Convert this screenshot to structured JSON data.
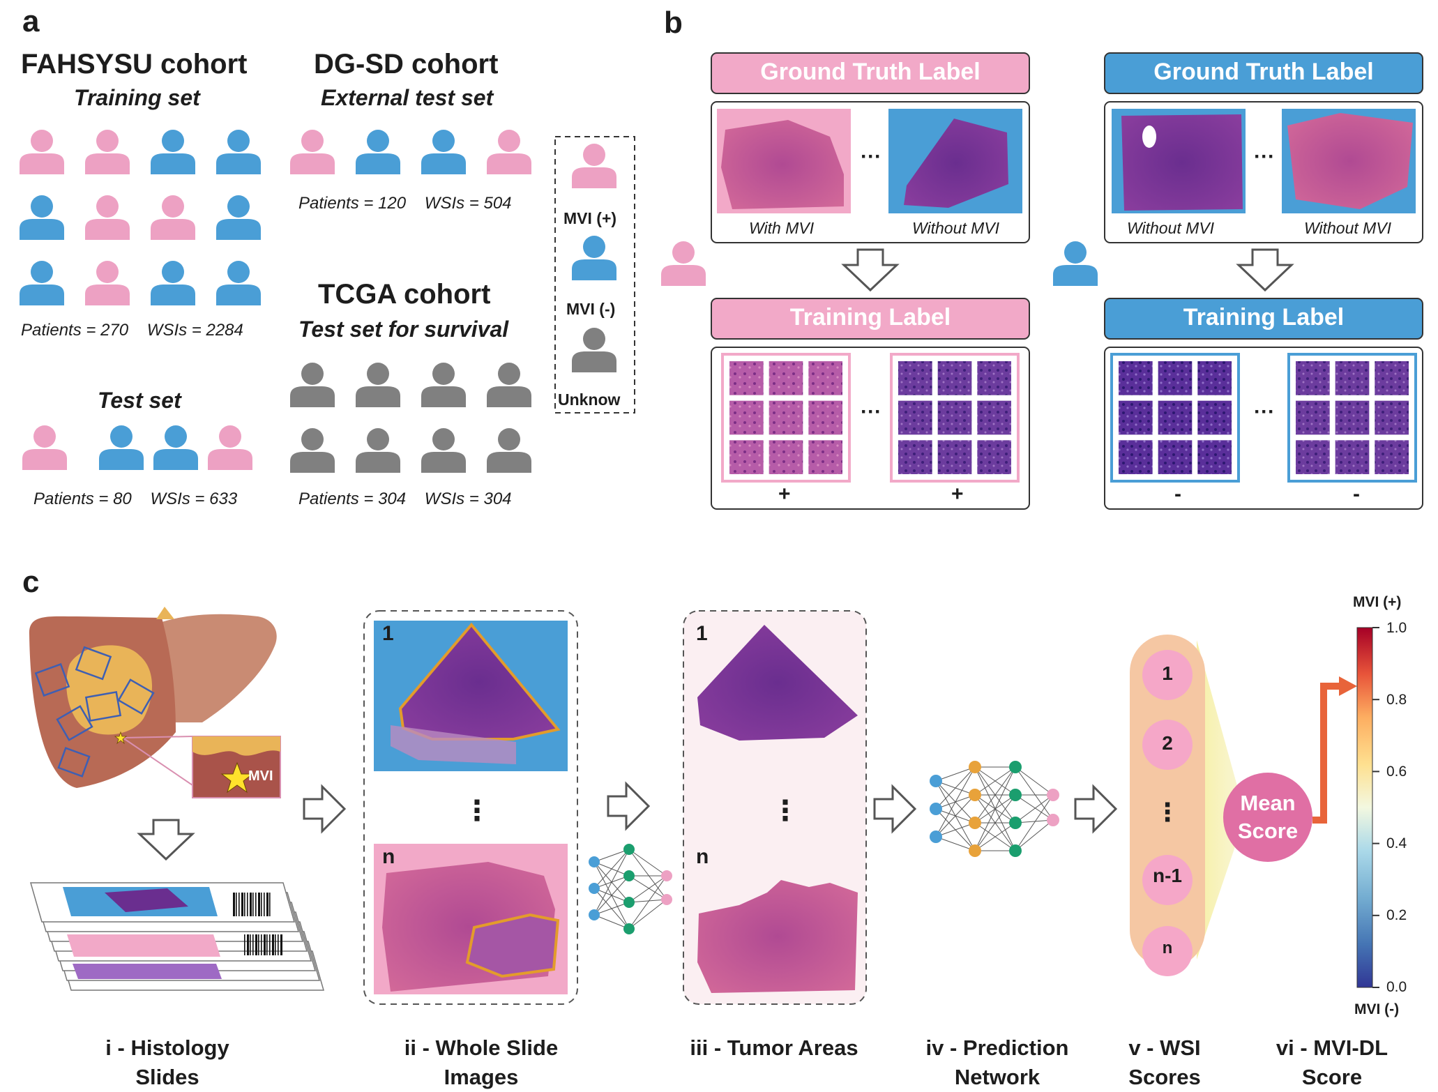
{
  "colors": {
    "mvi_positive": "#EDA1C3",
    "mvi_negative": "#4A9ED6",
    "unknown": "#808080",
    "truth_pink": "#F2A9C8",
    "truth_blue": "#4A9ED6",
    "pill": "#F5C7A3",
    "mean_score": "#E06FA4",
    "colormap": [
      "#313695",
      "#4575B4",
      "#74ADD1",
      "#ABD9E9",
      "#E0F3F8",
      "#FEE090",
      "#FDAE61",
      "#F46D43",
      "#D73027",
      "#A50026"
    ]
  },
  "panel_a": {
    "letter": "a",
    "fahsysu": {
      "title": "FAHSYSU cohort",
      "training_subtitle": "Training set",
      "training_stats": "Patients = 270    WSIs = 2284",
      "test_subtitle": "Test set",
      "test_stats": "Patients = 80    WSIs = 633"
    },
    "dgsd": {
      "title": "DG-SD cohort",
      "subtitle": "External test set",
      "stats": "Patients = 120    WSIs = 504"
    },
    "tcga": {
      "title": "TCGA cohort",
      "subtitle": "Test set for survival",
      "stats": "Patients = 304    WSIs = 304"
    },
    "legend": {
      "positive": "MVI (+)",
      "negative": "MVI (-)",
      "unknown": "Unknow"
    },
    "icon_glyph": "patient-icon"
  },
  "panel_b": {
    "letter": "b",
    "pink_side": {
      "truth_label": "Ground Truth Label",
      "training_label": "Training Label",
      "slide_left_caption": "With MVI",
      "slide_right_caption": "Without MVI",
      "ellipsis": "···",
      "tile_sign_left": "+",
      "tile_sign_right": "+"
    },
    "blue_side": {
      "truth_label": "Ground Truth Label",
      "training_label": "Training Label",
      "slide_left_caption": "Without MVI",
      "slide_right_caption": "Without MVI",
      "ellipsis": "···",
      "tile_sign_left": "-",
      "tile_sign_right": "-"
    }
  },
  "panel_c": {
    "letter": "c",
    "inset_label": "MVI",
    "wsi_first": "1",
    "wsi_last": "n",
    "vdots": "⋮",
    "pill_items": [
      "1",
      "2",
      "⋮",
      "n-1",
      "n"
    ],
    "mean_score": [
      "Mean",
      "Score"
    ],
    "colorbar": {
      "top_label": "MVI (+)",
      "bottom_label": "MVI (-)",
      "ticks": [
        "1.0",
        "0.8",
        "0.6",
        "0.4",
        "0.2",
        "0.0"
      ]
    },
    "steps": [
      [
        "i - Histology",
        "Slides"
      ],
      [
        "ii - Whole Slide",
        "Images"
      ],
      [
        "iii - Tumor Areas",
        ""
      ],
      [
        "iv - Prediction",
        "Network"
      ],
      [
        "v - WSI",
        "Scores"
      ],
      [
        "vi - MVI-DL",
        "Score"
      ]
    ]
  }
}
